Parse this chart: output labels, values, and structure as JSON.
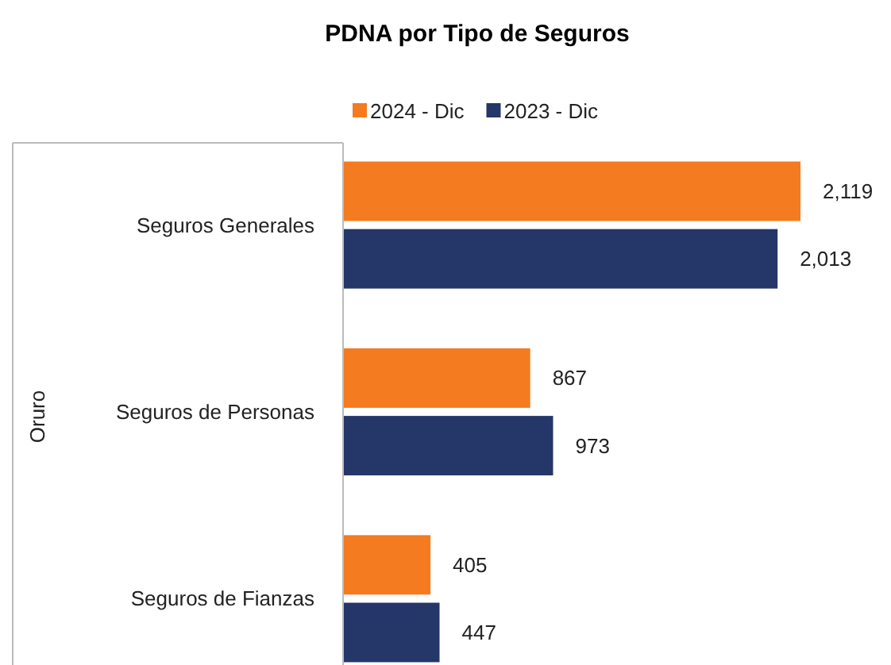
{
  "chart_data": {
    "type": "bar",
    "orientation": "horizontal",
    "title": "PDNA por Tipo de Seguros",
    "ylabel": "Oruro",
    "categories": [
      "Seguros Generales",
      "Seguros de Personas",
      "Seguros de Fianzas"
    ],
    "series": [
      {
        "name": "2024 - Dic",
        "color": "#f47b20",
        "values": [
          2119,
          867,
          405
        ],
        "value_labels": [
          "2,119",
          "867",
          "405"
        ]
      },
      {
        "name": "2023 - Dic",
        "color": "#253668",
        "values": [
          2013,
          973,
          447
        ],
        "value_labels": [
          "2,013",
          "973",
          "447"
        ]
      }
    ],
    "legend": "top",
    "tick_labels": "y"
  }
}
